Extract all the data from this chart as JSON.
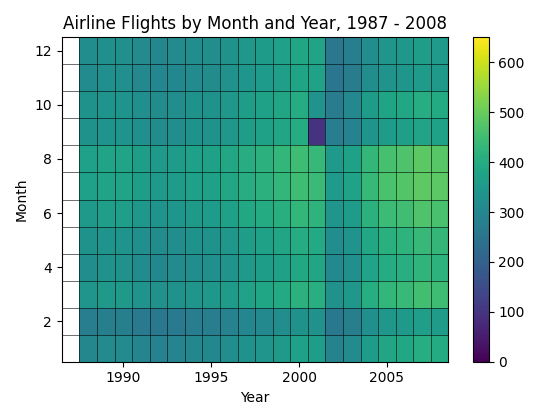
{
  "title": "Airline Flights by Month and Year, 1987 - 2008",
  "xlabel": "Year",
  "ylabel": "Month",
  "years": [
    1987,
    1988,
    1989,
    1990,
    1991,
    1992,
    1993,
    1994,
    1995,
    1996,
    1997,
    1998,
    1999,
    2000,
    2001,
    2002,
    2003,
    2004,
    2005,
    2006,
    2007,
    2008
  ],
  "months": [
    1,
    2,
    3,
    4,
    5,
    6,
    7,
    8,
    9,
    10,
    11,
    12
  ],
  "colormap": "viridis",
  "vmin": 0,
  "vmax": 650,
  "colorbar_ticks": [
    0,
    100,
    200,
    300,
    400,
    500,
    600
  ],
  "figsize": [
    5.6,
    4.2
  ],
  "dpi": 100,
  "data": [
    [
      null,
      301,
      309,
      309,
      295,
      288,
      293,
      300,
      303,
      316,
      330,
      340,
      350,
      366,
      360,
      290,
      308,
      358,
      381,
      388,
      402,
      398
    ],
    [
      null,
      272,
      279,
      279,
      266,
      260,
      265,
      272,
      274,
      285,
      298,
      307,
      316,
      330,
      325,
      261,
      277,
      322,
      343,
      350,
      363,
      358
    ],
    [
      null,
      340,
      349,
      349,
      333,
      325,
      331,
      340,
      343,
      357,
      374,
      385,
      396,
      414,
      408,
      327,
      347,
      403,
      429,
      437,
      453,
      447
    ],
    [
      null,
      318,
      326,
      326,
      311,
      304,
      309,
      318,
      320,
      333,
      349,
      360,
      370,
      387,
      381,
      305,
      323,
      376,
      400,
      408,
      423,
      417
    ],
    [
      null,
      328,
      336,
      336,
      321,
      313,
      319,
      328,
      330,
      344,
      360,
      371,
      382,
      399,
      393,
      315,
      334,
      388,
      413,
      421,
      436,
      430
    ],
    [
      null,
      352,
      361,
      361,
      344,
      336,
      342,
      352,
      354,
      369,
      386,
      398,
      409,
      428,
      421,
      338,
      358,
      416,
      443,
      451,
      468,
      461
    ],
    [
      null,
      368,
      377,
      377,
      360,
      352,
      358,
      368,
      371,
      386,
      404,
      416,
      428,
      448,
      441,
      354,
      375,
      436,
      464,
      473,
      490,
      483
    ],
    [
      null,
      368,
      377,
      377,
      360,
      352,
      358,
      368,
      371,
      386,
      404,
      416,
      428,
      448,
      436,
      350,
      371,
      431,
      459,
      468,
      485,
      478
    ],
    [
      null,
      328,
      336,
      336,
      321,
      313,
      319,
      328,
      330,
      344,
      360,
      371,
      382,
      399,
      95,
      272,
      289,
      336,
      358,
      365,
      378,
      373
    ],
    [
      null,
      328,
      336,
      336,
      321,
      313,
      319,
      328,
      330,
      344,
      360,
      371,
      382,
      399,
      335,
      268,
      307,
      357,
      380,
      388,
      402,
      396
    ],
    [
      null,
      312,
      320,
      320,
      305,
      298,
      304,
      312,
      314,
      327,
      342,
      353,
      363,
      380,
      374,
      255,
      271,
      315,
      335,
      342,
      354,
      349
    ],
    [
      null,
      316,
      324,
      324,
      309,
      302,
      308,
      316,
      318,
      331,
      347,
      358,
      368,
      385,
      378,
      258,
      275,
      319,
      340,
      347,
      359,
      354
    ]
  ]
}
